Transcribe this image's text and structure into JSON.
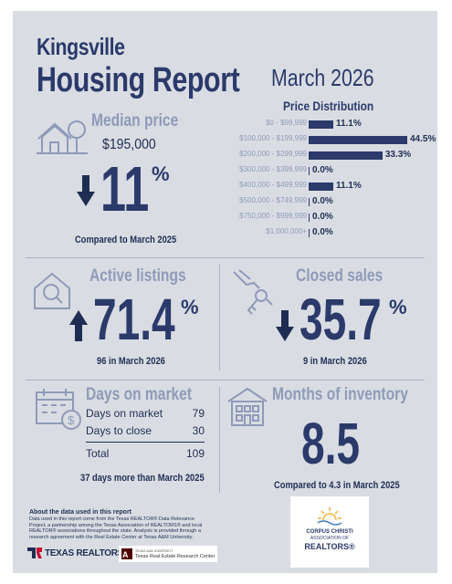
{
  "header": {
    "city": "Kingsville",
    "title": "Housing Report",
    "month": "March 2026"
  },
  "median_price": {
    "label": "Median price",
    "value": "$195,000",
    "change": "11",
    "pct_sign": "%",
    "direction": "down",
    "caption": "Compared to March 2025"
  },
  "price_distribution": {
    "title": "Price Distribution",
    "chart_data": {
      "type": "bar",
      "orientation": "horizontal",
      "categories": [
        "$0 - $99,999",
        "$100,000 - $199,999",
        "$200,000 - $299,999",
        "$300,000 - $399,999",
        "$400,000 - $499,999",
        "$500,000 - $749,999",
        "$750,000 - $999,999",
        "$1,000,000+"
      ],
      "values": [
        11.1,
        44.5,
        33.3,
        0.0,
        11.1,
        0.0,
        0.0,
        0.0
      ],
      "value_labels": [
        "11.1%",
        "44.5%",
        "33.3%",
        "0.0%",
        "11.1%",
        "0.0%",
        "0.0%",
        "0.0%"
      ]
    }
  },
  "active_listings": {
    "label": "Active listings",
    "change": "71.4",
    "pct_sign": "%",
    "direction": "up",
    "caption": "96 in March 2026"
  },
  "closed_sales": {
    "label": "Closed sales",
    "change": "35.7",
    "pct_sign": "%",
    "direction": "down",
    "caption": "9 in March 2026"
  },
  "days_on_market": {
    "label": "Days on market",
    "rows": [
      {
        "label": "Days on market",
        "value": "79"
      },
      {
        "label": "Days to close",
        "value": "30"
      }
    ],
    "total_label": "Total",
    "total_value": "109",
    "caption": "37 days more than March 2025"
  },
  "months_inventory": {
    "label": "Months of inventory",
    "value": "8.5",
    "caption": "Compared to 4.3 in March 2025"
  },
  "footer": {
    "about_title": "About the data used in this report",
    "about_text": "Data used in this report come from the Texas REALTOR® Data Relevance Project, a partnership among the Texas Association of REALTORS® and local REALTOR® associations throughout the state. Analysis is provided through a research agreement with the Real Estate Center at Texas A&M University.",
    "texas_realtors": "TEXAS REALTORS",
    "trerc_small": "TEXAS A&M UNIVERSITY",
    "trerc": "Texas Real Estate Research Center",
    "ccar_line1": "CORPUS CHRISTI",
    "ccar_line2": "ASSOCIATION OF",
    "ccar_line3": "REALTORS®"
  },
  "colors": {
    "navy": "#2b3a6a",
    "light_label": "#8f9ab8",
    "background": "#d9dde3"
  }
}
